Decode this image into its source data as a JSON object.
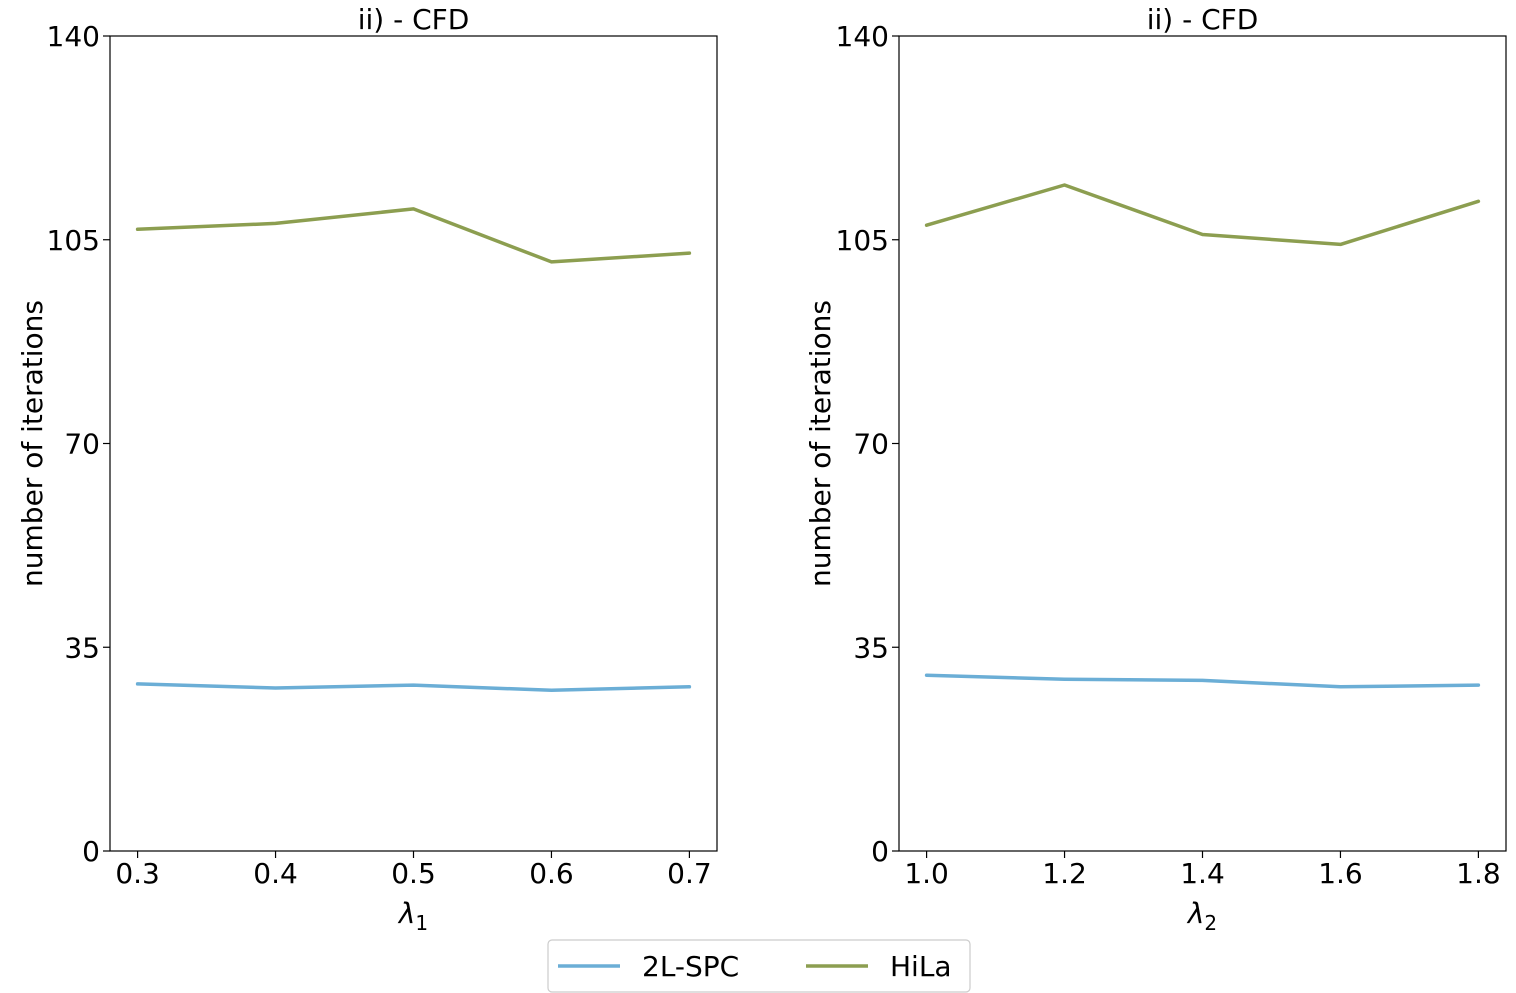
{
  "legend": {
    "placement": "bottom-center",
    "entries": [
      {
        "label": "2L-SPC",
        "color": "#6baed6"
      },
      {
        "label": "HiLa",
        "color": "#8c9e50"
      }
    ]
  },
  "chart_data": [
    {
      "type": "line",
      "title": "ii) - CFD",
      "xlabel_symbol": "λ",
      "xlabel_subscript": "1",
      "ylabel": "number of iterations",
      "x": [
        0.3,
        0.4,
        0.5,
        0.6,
        0.7
      ],
      "x_tick_labels": [
        "0.3",
        "0.4",
        "0.5",
        "0.6",
        "0.7"
      ],
      "xlim": [
        0.28,
        0.72
      ],
      "ylim": [
        0,
        140
      ],
      "y_ticks": [
        0,
        35,
        70,
        105,
        140
      ],
      "grid": false,
      "series": [
        {
          "name": "2L-SPC",
          "color": "#6baed6",
          "values": [
            28.7,
            28.0,
            28.5,
            27.6,
            28.2
          ]
        },
        {
          "name": "HiLa",
          "color": "#8c9e50",
          "values": [
            106.8,
            107.8,
            110.3,
            101.2,
            102.7
          ]
        }
      ]
    },
    {
      "type": "line",
      "title": "ii) - CFD",
      "xlabel_symbol": "λ",
      "xlabel_subscript": "2",
      "ylabel": "number of iterations",
      "x": [
        1.0,
        1.2,
        1.4,
        1.6,
        1.8
      ],
      "x_tick_labels": [
        "1.0",
        "1.2",
        "1.4",
        "1.6",
        "1.8"
      ],
      "xlim": [
        0.96,
        1.84
      ],
      "ylim": [
        0,
        140
      ],
      "y_ticks": [
        0,
        35,
        70,
        105,
        140
      ],
      "grid": false,
      "series": [
        {
          "name": "2L-SPC",
          "color": "#6baed6",
          "values": [
            30.2,
            29.5,
            29.3,
            28.2,
            28.5
          ]
        },
        {
          "name": "HiLa",
          "color": "#8c9e50",
          "values": [
            107.5,
            114.4,
            105.9,
            104.2,
            111.6
          ]
        }
      ]
    }
  ]
}
